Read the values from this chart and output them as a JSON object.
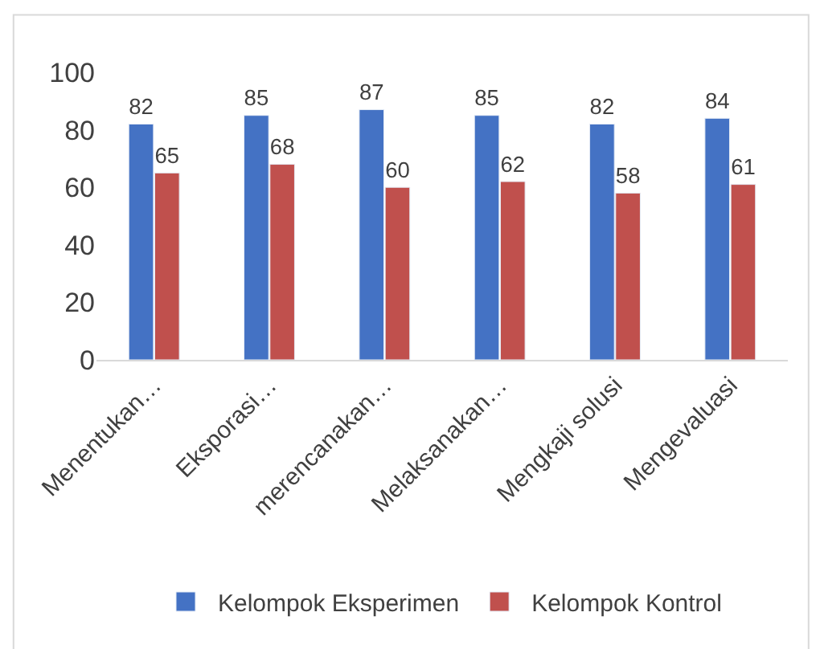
{
  "chart_data": {
    "type": "bar",
    "categories": [
      "Menentukan…",
      "Eksporasi…",
      "merencanakan…",
      "Melaksanakan…",
      "Mengkaji solusi",
      "Mengevaluasi"
    ],
    "series": [
      {
        "name": "Kelompok Eksperimen",
        "color": "#4472c4",
        "values": [
          82,
          85,
          87,
          85,
          82,
          84
        ]
      },
      {
        "name": "Kelompok Kontrol",
        "color": "#c0504d",
        "values": [
          65,
          68,
          60,
          62,
          58,
          61
        ]
      }
    ],
    "ylim": [
      0,
      100
    ],
    "yticks": [
      0,
      20,
      40,
      60,
      80,
      100
    ],
    "data_labels": true,
    "grid": false,
    "legend": "bottom"
  }
}
